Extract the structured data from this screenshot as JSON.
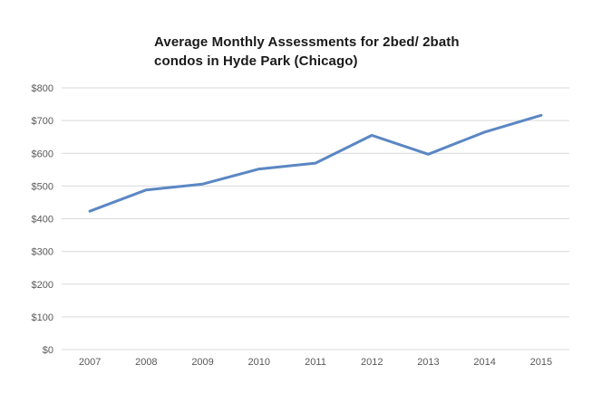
{
  "title": {
    "line1": "Average Monthly Assessments for 2bed/ 2bath",
    "line2": "condos in Hyde Park (Chicago)"
  },
  "chart_data": {
    "type": "line",
    "title": "Average Monthly Assessments for 2bed/ 2bath condos in Hyde Park (Chicago)",
    "categories": [
      "2007",
      "2008",
      "2009",
      "2010",
      "2011",
      "2012",
      "2013",
      "2014",
      "2015"
    ],
    "values": [
      423,
      488,
      506,
      552,
      570,
      655,
      597,
      665,
      716
    ],
    "xlabel": "",
    "ylabel": "",
    "ylim": [
      0,
      800
    ],
    "ytick_step": 100,
    "ytick_labels": [
      "$0",
      "$100",
      "$200",
      "$300",
      "$400",
      "$500",
      "$600",
      "$700",
      "$800"
    ],
    "grid": "horizontal",
    "legend": "none",
    "colors": {
      "line": "#5b87c3",
      "gridline": "#d9d9d9",
      "tick_label": "#595959",
      "title": "#1a1a1a",
      "background": "#ffffff"
    }
  }
}
